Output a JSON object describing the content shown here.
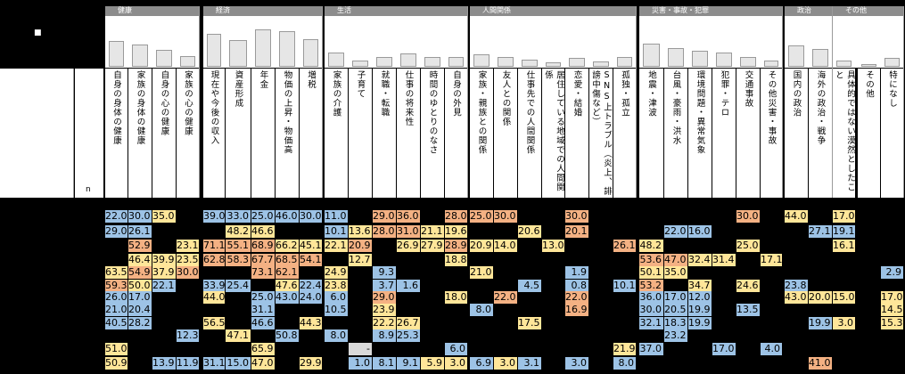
{
  "corner_label": "■",
  "n_label": "n",
  "categories": [
    {
      "label": "健康"
    },
    {
      "label": "経済"
    },
    {
      "label": "生活"
    },
    {
      "label": "人間関係"
    },
    {
      "label": "災害・事故・犯罪"
    },
    {
      "label": "政治"
    },
    {
      "label": "その他"
    }
  ],
  "columns": [
    {
      "label": "自身の身体の健康"
    },
    {
      "label": "家族の身体の健康"
    },
    {
      "label": "自身の心の健康"
    },
    {
      "label": "家族の心の健康"
    },
    {
      "label": "現在や今後の収入"
    },
    {
      "label": "資産形成"
    },
    {
      "label": "年金"
    },
    {
      "label": "物価の上昇・物価高"
    },
    {
      "label": "増税"
    },
    {
      "label": "家族の介護"
    },
    {
      "label": "子育て"
    },
    {
      "label": "就職・転職"
    },
    {
      "label": "仕事の将来性"
    },
    {
      "label": "時間のゆとりのなさ"
    },
    {
      "label": "自身の外見"
    },
    {
      "label": "家族・親族との関係"
    },
    {
      "label": "友人との関係"
    },
    {
      "label": "仕事先での人間関係"
    },
    {
      "label": "居住している地域での人間関係"
    },
    {
      "label": "恋愛・結婚"
    },
    {
      "label": "SNS上トラブル（炎上、誹謗中傷など）"
    },
    {
      "label": "孤独・孤立"
    },
    {
      "label": "地震・津波"
    },
    {
      "label": "台風・豪雨・洪水"
    },
    {
      "label": "環境問題・異常気象"
    },
    {
      "label": "犯罪・テロ"
    },
    {
      "label": "交通事故"
    },
    {
      "label": "その他災害・事故"
    },
    {
      "label": "国内の政治"
    },
    {
      "label": "海外の政治・戦争"
    },
    {
      "label": "具体的ではない漠然としたこと"
    },
    {
      "label": "その他"
    },
    {
      "label": "特になし"
    }
  ],
  "rows": [
    [
      "22.0",
      "30.0",
      "35.0",
      "",
      "39.0",
      "33.0",
      "25.0",
      "46.0",
      "30.0",
      "11.0",
      "",
      "29.0",
      "36.0",
      "",
      "28.0",
      "25.0",
      "30.0",
      "",
      "",
      "30.0",
      "",
      "",
      "",
      "",
      "",
      "",
      "30.0",
      "",
      "44.0",
      "",
      "17.0",
      "",
      ""
    ],
    [
      "29.0",
      "26.1",
      "",
      "",
      "",
      "48.2",
      "46.6",
      "",
      "",
      "10.1",
      "13.6",
      "28.0",
      "31.0",
      "21.1",
      "19.6",
      "",
      "",
      "20.6",
      "",
      "20.1",
      "",
      "",
      "",
      "22.0",
      "16.0",
      "",
      "",
      "",
      "",
      "27.1",
      "19.1",
      "",
      ""
    ],
    [
      "",
      "52.9",
      "",
      "23.1",
      "71.1",
      "55.1",
      "68.9",
      "66.2",
      "45.1",
      "22.1",
      "20.9",
      "",
      "26.9",
      "27.9",
      "28.9",
      "20.9",
      "14.0",
      "",
      "13.0",
      "",
      "",
      "26.1",
      "48.2",
      "",
      "",
      "",
      "25.0",
      "",
      "",
      "",
      "16.1",
      "",
      ""
    ],
    [
      "",
      "46.4",
      "39.9",
      "23.5",
      "62.8",
      "58.3",
      "67.7",
      "68.5",
      "54.1",
      "",
      "12.7",
      "",
      "",
      "",
      "18.8",
      "",
      "",
      "",
      "",
      "",
      "",
      "",
      "53.6",
      "47.0",
      "32.4",
      "31.4",
      "",
      "17.1",
      "",
      "",
      "",
      "",
      ""
    ],
    [
      "63.5",
      "54.9",
      "37.9",
      "30.0",
      "",
      "",
      "73.1",
      "62.1",
      "",
      "24.9",
      "",
      "9.3",
      "",
      "",
      "",
      "21.0",
      "",
      "",
      "",
      "1.9",
      "",
      "",
      "50.1",
      "35.0",
      "",
      "",
      "",
      "",
      "",
      "",
      "",
      "",
      "2.9"
    ],
    [
      "59.3",
      "50.0",
      "22.1",
      "",
      "33.9",
      "25.4",
      "",
      "47.6",
      "22.4",
      "23.8",
      "-",
      "3.7",
      "1.6",
      "",
      "",
      "",
      "",
      "4.5",
      "",
      "0.8",
      "",
      "10.1",
      "53.2",
      "",
      "34.7",
      "",
      "24.6",
      "",
      "23.8",
      "",
      "",
      "",
      ""
    ],
    [
      "26.0",
      "17.0",
      "",
      "",
      "44.0",
      "",
      "25.0",
      "43.0",
      "24.0",
      "6.0",
      "",
      "29.0",
      "",
      "",
      "18.0",
      "",
      "22.0",
      "",
      "",
      "22.0",
      "",
      "",
      "36.0",
      "17.0",
      "12.0",
      "",
      "",
      "",
      "43.0",
      "20.0",
      "15.0",
      "",
      "17.0"
    ],
    [
      "21.0",
      "20.4",
      "",
      "",
      "",
      "",
      "31.1",
      "",
      "",
      "10.5",
      "",
      "23.9",
      "",
      "",
      "",
      "8.0",
      "",
      "",
      "",
      "16.9",
      "",
      "",
      "30.0",
      "20.5",
      "19.9",
      "",
      "13.5",
      "",
      "",
      "",
      "",
      "",
      "14.5"
    ],
    [
      "40.5",
      "28.2",
      "",
      "",
      "56.5",
      "",
      "46.6",
      "",
      "44.3",
      "",
      "",
      "22.2",
      "26.7",
      "",
      "",
      "",
      "",
      "17.5",
      "",
      "",
      "",
      "",
      "32.1",
      "18.3",
      "19.9",
      "",
      "",
      "",
      "",
      "19.9",
      "3.0",
      "",
      "15.3"
    ],
    [
      "",
      "",
      "",
      "12.3",
      "",
      "47.1",
      "",
      "50.8",
      "",
      "8.0",
      "",
      "8.9",
      "25.3",
      "",
      "",
      "",
      "",
      "",
      "",
      "",
      "",
      "",
      "",
      "23.2",
      "",
      "",
      "",
      "",
      "",
      "",
      "",
      "",
      ""
    ],
    [
      "51.0",
      "",
      "",
      "",
      "",
      "",
      "65.9",
      "",
      "",
      "",
      "-",
      "",
      "",
      "",
      "6.0",
      "",
      "",
      "",
      "",
      "",
      "",
      "21.9",
      "37.0",
      "",
      "",
      "17.0",
      "",
      "4.0",
      "",
      "",
      "",
      "",
      ""
    ],
    [
      "50.9",
      "",
      "13.9",
      "11.9",
      "31.1",
      "15.0",
      "47.0",
      "",
      "29.9",
      "",
      "1.0",
      "8.1",
      "9.1",
      "5.9",
      "3.0",
      "6.9",
      "3.0",
      "3.1",
      "",
      "3.0",
      "",
      "8.0",
      "",
      "",
      "",
      "",
      "",
      "",
      "",
      "41.0",
      "",
      "",
      ""
    ]
  ],
  "highlight_colors": {
    "orange": "#f4b183",
    "yellow": "#ffe699",
    "blue": "#9dc3e6",
    "gray": "#d9d9d9",
    "empty": "#000000"
  },
  "row_colors": [
    [
      "blue",
      "blue",
      "yellow",
      "",
      "blue",
      "blue",
      "blue",
      "blue",
      "blue",
      "blue",
      "",
      "orange",
      "orange",
      "",
      "orange",
      "orange",
      "orange",
      "",
      "",
      "orange",
      "",
      "",
      "",
      "",
      "",
      "",
      "orange",
      "",
      "yellow",
      "",
      "yellow",
      "",
      ""
    ],
    [
      "blue",
      "blue",
      "",
      "",
      "",
      "yellow",
      "yellow",
      "",
      "",
      "blue",
      "yellow",
      "orange",
      "orange",
      "yellow",
      "yellow",
      "",
      "",
      "yellow",
      "",
      "orange",
      "",
      "",
      "",
      "blue",
      "blue",
      "",
      "",
      "",
      "",
      "blue",
      "blue",
      "",
      ""
    ],
    [
      "",
      "orange",
      "",
      "yellow",
      "orange",
      "orange",
      "orange",
      "yellow",
      "yellow",
      "yellow",
      "orange",
      "",
      "yellow",
      "yellow",
      "orange",
      "yellow",
      "yellow",
      "",
      "yellow",
      "",
      "",
      "orange",
      "yellow",
      "",
      "",
      "",
      "yellow",
      "",
      "",
      "",
      "yellow",
      "",
      ""
    ],
    [
      "",
      "yellow",
      "yellow",
      "yellow",
      "orange",
      "orange",
      "orange",
      "orange",
      "orange",
      "",
      "yellow",
      "",
      "",
      "",
      "yellow",
      "",
      "",
      "",
      "",
      "",
      "",
      "",
      "orange",
      "orange",
      "yellow",
      "yellow",
      "",
      "yellow",
      "",
      "",
      "",
      "",
      ""
    ],
    [
      "yellow",
      "orange",
      "yellow",
      "orange",
      "",
      "",
      "orange",
      "orange",
      "",
      "yellow",
      "",
      "blue",
      "",
      "",
      "",
      "yellow",
      "",
      "",
      "",
      "blue",
      "",
      "",
      "yellow",
      "yellow",
      "",
      "",
      "",
      "",
      "",
      "",
      "",
      "",
      "blue"
    ],
    [
      "orange",
      "yellow",
      "blue",
      "",
      "blue",
      "blue",
      "",
      "yellow",
      "blue",
      "yellow",
      "",
      "blue",
      "blue",
      "",
      "",
      "",
      "",
      "blue",
      "",
      "blue",
      "",
      "blue",
      "orange",
      "",
      "yellow",
      "",
      "yellow",
      "",
      "blue",
      "",
      "",
      "",
      ""
    ],
    [
      "blue",
      "blue",
      "",
      "",
      "yellow",
      "",
      "blue",
      "blue",
      "blue",
      "blue",
      "",
      "orange",
      "",
      "",
      "yellow",
      "",
      "orange",
      "",
      "",
      "orange",
      "",
      "",
      "blue",
      "blue",
      "blue",
      "",
      "",
      "",
      "yellow",
      "yellow",
      "yellow",
      "",
      "yellow"
    ],
    [
      "blue",
      "blue",
      "",
      "",
      "",
      "",
      "blue",
      "",
      "",
      "blue",
      "",
      "yellow",
      "",
      "",
      "",
      "blue",
      "",
      "",
      "",
      "orange",
      "",
      "",
      "blue",
      "blue",
      "blue",
      "",
      "blue",
      "",
      "",
      "",
      "",
      "",
      "yellow"
    ],
    [
      "blue",
      "blue",
      "",
      "",
      "yellow",
      "",
      "blue",
      "",
      "yellow",
      "",
      "",
      "yellow",
      "yellow",
      "",
      "",
      "",
      "",
      "yellow",
      "",
      "",
      "",
      "",
      "blue",
      "blue",
      "blue",
      "",
      "",
      "",
      "",
      "blue",
      "yellow",
      "",
      "yellow"
    ],
    [
      "",
      "",
      "",
      "blue",
      "",
      "yellow",
      "",
      "blue",
      "",
      "blue",
      "",
      "blue",
      "blue",
      "",
      "",
      "",
      "",
      "",
      "",
      "",
      "",
      "",
      "",
      "blue",
      "",
      "",
      "",
      "",
      "",
      "",
      "",
      "",
      ""
    ],
    [
      "yellow",
      "",
      "",
      "",
      "",
      "",
      "yellow",
      "",
      "",
      "",
      "gray",
      "",
      "",
      "",
      "blue",
      "",
      "",
      "",
      "",
      "",
      "",
      "yellow",
      "blue",
      "",
      "",
      "blue",
      "",
      "blue",
      "",
      "",
      "",
      "",
      ""
    ],
    [
      "yellow",
      "",
      "blue",
      "blue",
      "blue",
      "blue",
      "yellow",
      "",
      "yellow",
      "",
      "blue",
      "blue",
      "blue",
      "yellow",
      "yellow",
      "blue",
      "yellow",
      "blue",
      "",
      "blue",
      "",
      "blue",
      "",
      "",
      "",
      "",
      "",
      "",
      "",
      "orange",
      "",
      "",
      ""
    ]
  ],
  "bar_levels": [
    0.56,
    0.48,
    0.36,
    0.24,
    0.72,
    0.58,
    0.8,
    0.76,
    0.6,
    0.3,
    0.14,
    0.22,
    0.28,
    0.22,
    0.22,
    0.26,
    0.22,
    0.16,
    0.1,
    0.2,
    0.12,
    0.22,
    0.5,
    0.4,
    0.34,
    0.3,
    0.22,
    0.14,
    0.46,
    0.38,
    0.14,
    0.06,
    0.2
  ]
}
